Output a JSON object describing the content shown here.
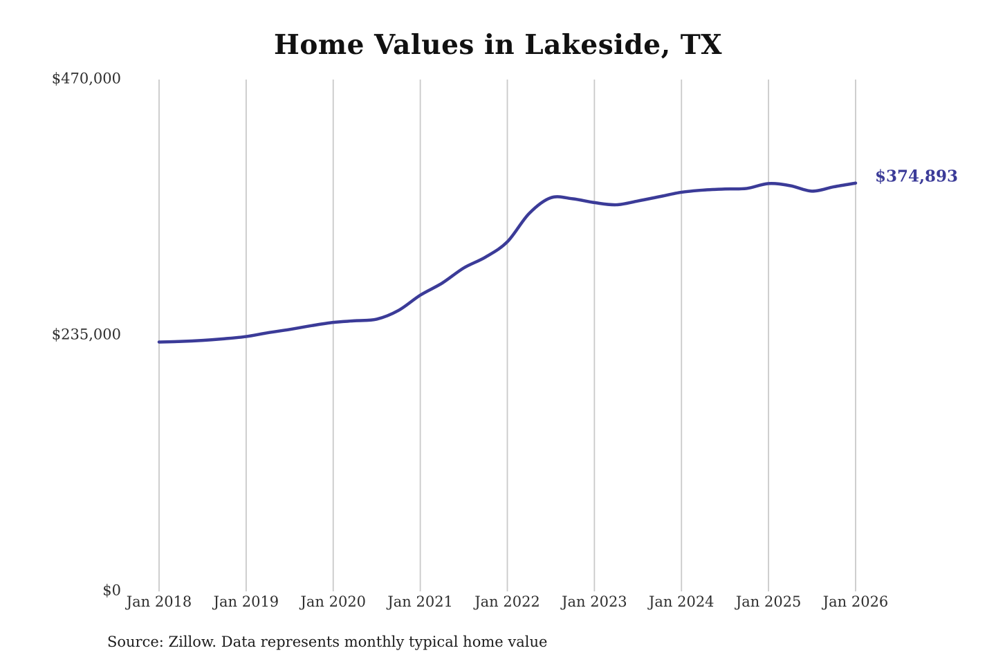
{
  "title": "Home Values in Lakeside, TX",
  "source_note": "Source: Zillow. Data represents monthly typical home value",
  "colors": {
    "line": "#3b3b98",
    "grid": "#c9c9c9",
    "title_text": "#111111",
    "tick_text": "#2e2e2e"
  },
  "chart_data": {
    "type": "line",
    "title": "Home Values in Lakeside, TX",
    "xlabel": "",
    "ylabel": "",
    "ylim": [
      0,
      470000
    ],
    "grid": "vertical-only",
    "legend": "none",
    "end_label": "$374,893",
    "end_value": 374893,
    "yticks": [
      {
        "value": 0,
        "label": "$0"
      },
      {
        "value": 235000,
        "label": "$235,000"
      },
      {
        "value": 470000,
        "label": "$470,000"
      }
    ],
    "xticks": [
      {
        "t": "2018-01",
        "label": "Jan 2018"
      },
      {
        "t": "2019-01",
        "label": "Jan 2019"
      },
      {
        "t": "2020-01",
        "label": "Jan 2020"
      },
      {
        "t": "2021-01",
        "label": "Jan 2021"
      },
      {
        "t": "2022-01",
        "label": "Jan 2022"
      },
      {
        "t": "2023-01",
        "label": "Jan 2023"
      },
      {
        "t": "2024-01",
        "label": "Jan 2024"
      },
      {
        "t": "2025-01",
        "label": "Jan 2025"
      },
      {
        "t": "2026-01",
        "label": "Jan 2026"
      }
    ],
    "x": [
      "2018-01",
      "2018-04",
      "2018-07",
      "2018-10",
      "2019-01",
      "2019-04",
      "2019-07",
      "2019-10",
      "2020-01",
      "2020-04",
      "2020-07",
      "2020-10",
      "2021-01",
      "2021-04",
      "2021-07",
      "2021-10",
      "2022-01",
      "2022-04",
      "2022-07",
      "2022-10",
      "2023-01",
      "2023-04",
      "2023-07",
      "2023-10",
      "2024-01",
      "2024-04",
      "2024-07",
      "2024-10",
      "2025-01",
      "2025-04",
      "2025-07",
      "2025-10",
      "2026-01"
    ],
    "values": [
      229000,
      229500,
      230500,
      232000,
      234000,
      237500,
      240500,
      244000,
      247000,
      248500,
      250000,
      258000,
      272000,
      283000,
      297000,
      307000,
      321000,
      347000,
      361500,
      360500,
      357000,
      355000,
      358500,
      362500,
      366500,
      368500,
      369500,
      370000,
      374500,
      372500,
      367500,
      371500,
      374893
    ]
  }
}
